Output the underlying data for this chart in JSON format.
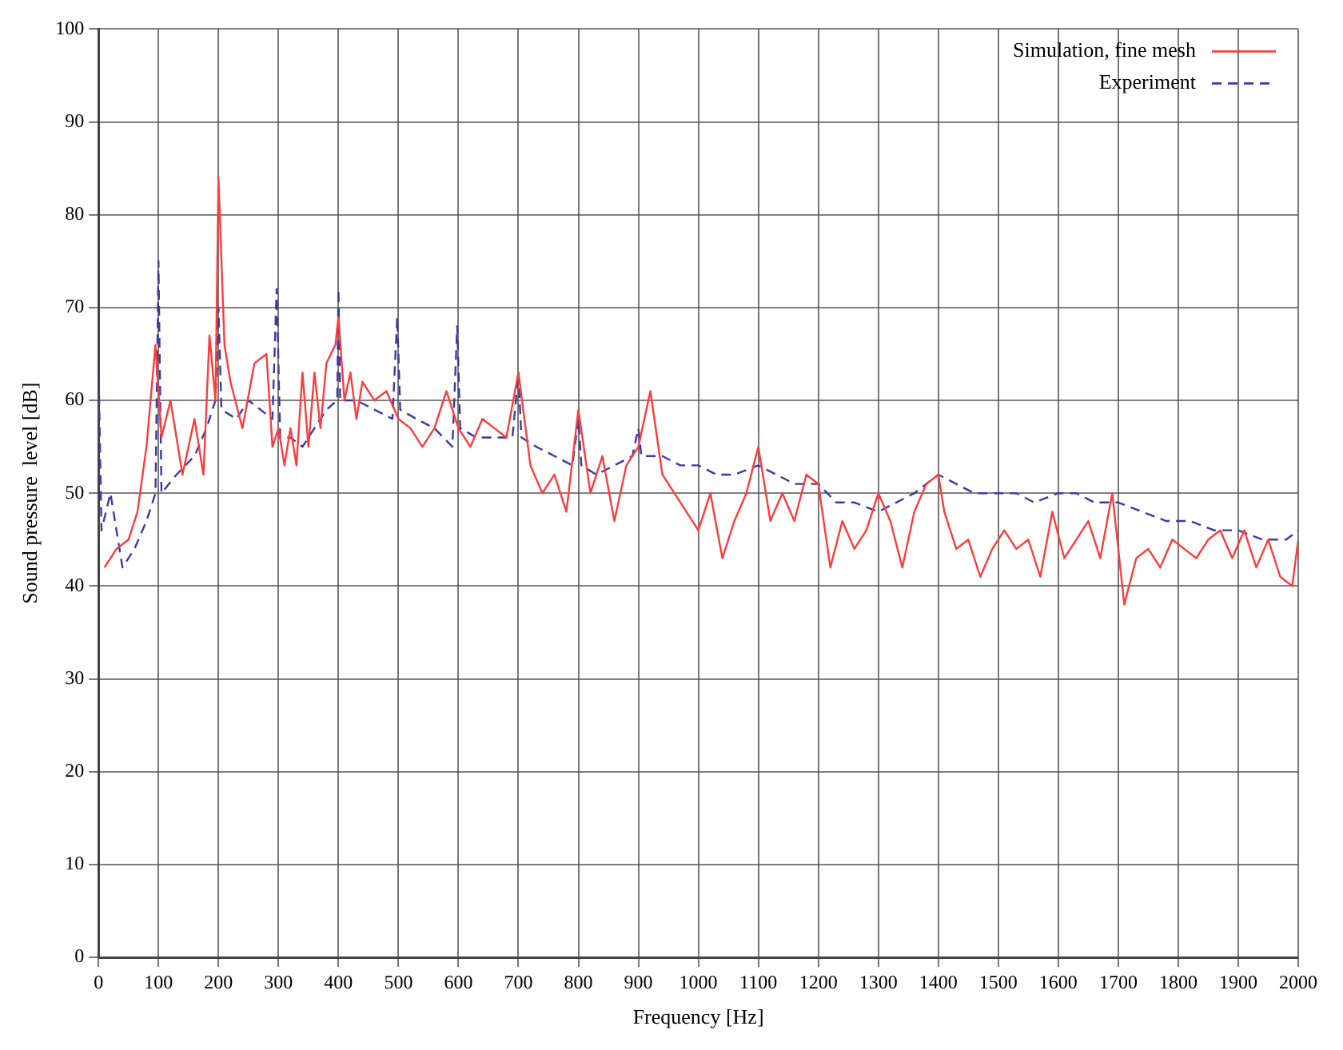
{
  "chart_data": {
    "type": "line",
    "xlabel": "Frequency [Hz]",
    "ylabel": "Sound pressure  level [dB]",
    "xlim": [
      0,
      2000
    ],
    "xticks": [
      0,
      100,
      200,
      300,
      400,
      500,
      600,
      700,
      800,
      900,
      1000,
      1100,
      1200,
      1300,
      1400,
      1500,
      1600,
      1700,
      1800,
      1900,
      2000
    ],
    "ylim": [
      0,
      100
    ],
    "yticks": [
      0,
      10,
      20,
      30,
      40,
      50,
      60,
      70,
      80,
      90,
      100
    ],
    "grid": true,
    "legend": "top right",
    "marker": "none",
    "series": [
      {
        "name": "Simulation, fine mesh",
        "color": "#ff3b3b",
        "line_style": "solid",
        "x": [
          10,
          30,
          50,
          65,
          80,
          95,
          105,
          120,
          140,
          160,
          175,
          185,
          195,
          200,
          210,
          220,
          240,
          260,
          280,
          290,
          300,
          310,
          320,
          330,
          340,
          350,
          360,
          370,
          380,
          395,
          400,
          410,
          420,
          430,
          440,
          460,
          480,
          500,
          520,
          540,
          560,
          580,
          600,
          620,
          640,
          660,
          680,
          700,
          720,
          740,
          760,
          780,
          800,
          820,
          840,
          860,
          880,
          900,
          920,
          940,
          960,
          980,
          1000,
          1020,
          1040,
          1060,
          1080,
          1100,
          1120,
          1140,
          1160,
          1180,
          1200,
          1220,
          1240,
          1260,
          1280,
          1300,
          1320,
          1340,
          1360,
          1380,
          1400,
          1410,
          1430,
          1450,
          1470,
          1490,
          1510,
          1530,
          1550,
          1570,
          1590,
          1610,
          1630,
          1650,
          1670,
          1690,
          1710,
          1730,
          1750,
          1770,
          1790,
          1810,
          1830,
          1850,
          1870,
          1890,
          1910,
          1930,
          1950,
          1970,
          1990,
          2000
        ],
        "values": [
          42,
          44,
          45,
          48,
          55,
          66,
          56,
          60,
          52,
          58,
          52,
          67,
          60,
          84,
          66,
          62,
          57,
          64,
          65,
          55,
          57,
          53,
          57,
          53,
          63,
          55,
          63,
          57,
          64,
          66,
          69,
          60,
          63,
          58,
          62,
          60,
          61,
          58,
          57,
          55,
          57,
          61,
          57,
          55,
          58,
          57,
          56,
          63,
          53,
          50,
          52,
          48,
          59,
          50,
          54,
          47,
          53,
          55,
          61,
          52,
          50,
          48,
          46,
          50,
          43,
          47,
          50,
          55,
          47,
          50,
          47,
          52,
          51,
          42,
          47,
          44,
          46,
          50,
          47,
          42,
          48,
          51,
          52,
          48,
          44,
          45,
          41,
          44,
          46,
          44,
          45,
          41,
          48,
          43,
          45,
          47,
          43,
          50,
          38,
          43,
          44,
          42,
          45,
          44,
          43,
          45,
          46,
          43,
          46,
          42,
          45,
          41,
          40,
          45
        ]
      },
      {
        "name": "Experiment",
        "color": "#3a3aa8",
        "line_style": "dashed",
        "x": [
          0,
          5,
          20,
          40,
          60,
          80,
          95,
          100,
          105,
          130,
          160,
          180,
          195,
          200,
          205,
          230,
          250,
          270,
          290,
          297,
          303,
          320,
          340,
          360,
          380,
          398,
          400,
          403,
          430,
          460,
          490,
          498,
          503,
          530,
          560,
          590,
          598,
          603,
          630,
          660,
          690,
          700,
          705,
          730,
          760,
          790,
          800,
          805,
          830,
          860,
          890,
          900,
          905,
          940,
          970,
          1000,
          1030,
          1060,
          1100,
          1130,
          1160,
          1200,
          1230,
          1260,
          1300,
          1330,
          1360,
          1400,
          1430,
          1460,
          1500,
          1530,
          1560,
          1600,
          1630,
          1660,
          1700,
          1740,
          1780,
          1820,
          1860,
          1900,
          1940,
          1980,
          2000
        ],
        "values": [
          64,
          46,
          50,
          42,
          44,
          47,
          50,
          75,
          50,
          52,
          54,
          57,
          60,
          70,
          59,
          58,
          60,
          59,
          58,
          72,
          56,
          56,
          55,
          57,
          59,
          60,
          72,
          60,
          60,
          59,
          58,
          69,
          59,
          58,
          57,
          55,
          68,
          57,
          56,
          56,
          56,
          63,
          56,
          55,
          54,
          53,
          58,
          53,
          52,
          53,
          54,
          57,
          54,
          54,
          53,
          53,
          52,
          52,
          53,
          52,
          51,
          51,
          49,
          49,
          48,
          49,
          50,
          52,
          51,
          50,
          50,
          50,
          49,
          50,
          50,
          49,
          49,
          48,
          47,
          47,
          46,
          46,
          45,
          45,
          46
        ]
      }
    ]
  }
}
